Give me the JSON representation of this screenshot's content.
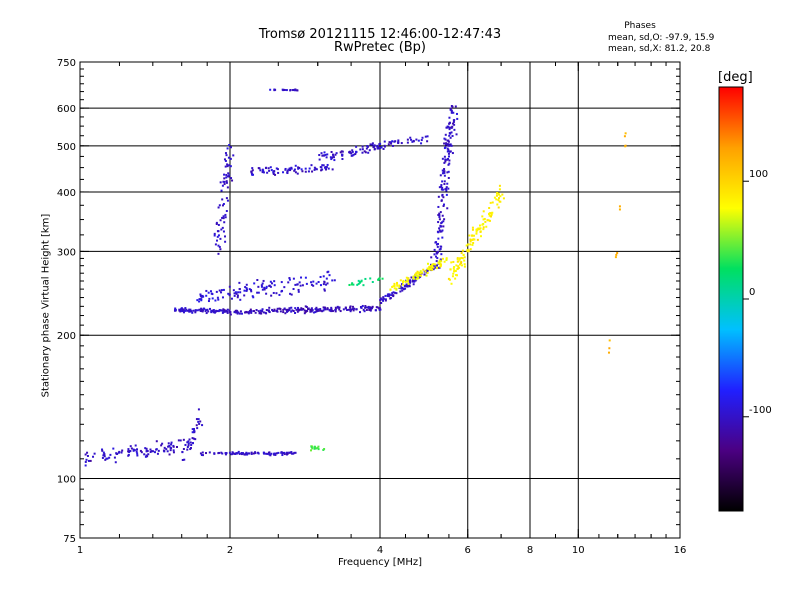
{
  "figure": {
    "title_line1": "Tromsø 20121115 12:46:00-12:47:43",
    "title_line2": "RwPretec (Bp)",
    "phases_heading": "Phases",
    "phases_o": "mean, sd,O: -97.9, 15.9",
    "phases_x": "mean, sd,X:  81.2, 20.8"
  },
  "chart_data": {
    "type": "scatter",
    "title": "Tromsø 20121115 12:46:00-12:47:43",
    "subtitle": "RwPretec (Bp)",
    "xlabel": "Frequency [MHz]",
    "ylabel": "Stationary phase Virtual Height [km]",
    "x_scale": "log",
    "y_scale": "log",
    "xlim": [
      1,
      16
    ],
    "ylim": [
      75,
      750
    ],
    "x_major_ticks": [
      1,
      2,
      4,
      6,
      8,
      10,
      16
    ],
    "y_major_ticks": [
      75,
      100,
      200,
      300,
      400,
      500,
      600,
      750
    ],
    "grid_x": [
      2,
      4,
      6,
      8,
      10
    ],
    "grid_y": [
      100,
      200,
      300,
      400,
      500,
      600
    ],
    "grid": true,
    "colorbar": {
      "label": "[deg]",
      "range": [
        -180,
        180
      ],
      "ticks": [
        100,
        0,
        -100
      ],
      "colors": [
        "#000000",
        "#4b0082",
        "#2020ff",
        "#00c0ff",
        "#00e060",
        "#ffff00",
        "#ffa000",
        "#ff0000"
      ]
    },
    "series": [
      {
        "x": [
          1.0,
          1.7
        ],
        "y": [
          110,
          118
        ],
        "phase": -100,
        "n": 110,
        "spread": 0.05
      },
      {
        "x": [
          1.75,
          2.7
        ],
        "y": [
          113,
          113
        ],
        "phase": -100,
        "n": 90,
        "spread": 0.012
      },
      {
        "x": [
          1.6,
          1.75
        ],
        "y": [
          110,
          135
        ],
        "phase": -100,
        "n": 25,
        "spread": 0.04
      },
      {
        "x": [
          1.55,
          2.0
        ],
        "y": [
          226,
          224
        ],
        "phase": -100,
        "n": 90,
        "spread": 0.015
      },
      {
        "x": [
          2.0,
          4.0
        ],
        "y": [
          224,
          228
        ],
        "phase": -105,
        "n": 200,
        "spread": 0.02
      },
      {
        "x": [
          1.7,
          3.2
        ],
        "y": [
          240,
          260
        ],
        "phase": -95,
        "n": 130,
        "spread": 0.06
      },
      {
        "x": [
          4.0,
          5.3
        ],
        "y": [
          235,
          285
        ],
        "phase": -100,
        "n": 110,
        "spread": 0.03
      },
      {
        "x": [
          5.2,
          5.6
        ],
        "y": [
          290,
          600
        ],
        "phase": -100,
        "n": 160,
        "spread": 0.06
      },
      {
        "x": [
          4.2,
          5.5
        ],
        "y": [
          250,
          290
        ],
        "phase": 80,
        "n": 90,
        "spread": 0.03
      },
      {
        "x": [
          5.5,
          7.0
        ],
        "y": [
          260,
          400
        ],
        "phase": 85,
        "n": 120,
        "spread": 0.06
      },
      {
        "x": [
          3.5,
          4.1
        ],
        "y": [
          258,
          262
        ],
        "phase": 20,
        "n": 20,
        "spread": 0.025
      },
      {
        "x": [
          1.9,
          2.0
        ],
        "y": [
          300,
          500
        ],
        "phase": -100,
        "n": 70,
        "spread": 0.08
      },
      {
        "x": [
          2.2,
          3.2
        ],
        "y": [
          440,
          450
        ],
        "phase": -100,
        "n": 80,
        "spread": 0.03
      },
      {
        "x": [
          3.0,
          4.0
        ],
        "y": [
          470,
          500
        ],
        "phase": -100,
        "n": 70,
        "spread": 0.03
      },
      {
        "x": [
          4.0,
          5.0
        ],
        "y": [
          500,
          520
        ],
        "phase": -100,
        "n": 35,
        "spread": 0.03
      },
      {
        "x": [
          2.4,
          2.8
        ],
        "y": [
          655,
          655
        ],
        "phase": -100,
        "n": 20,
        "spread": 0.004
      },
      {
        "x": [
          2.9,
          3.1
        ],
        "y": [
          116,
          116
        ],
        "phase": 40,
        "n": 15,
        "spread": 0.015
      },
      {
        "x": [
          11.5,
          12.5
        ],
        "y": [
          180,
          560
        ],
        "phase": 120,
        "n": 12,
        "spread": 0.01
      }
    ]
  }
}
